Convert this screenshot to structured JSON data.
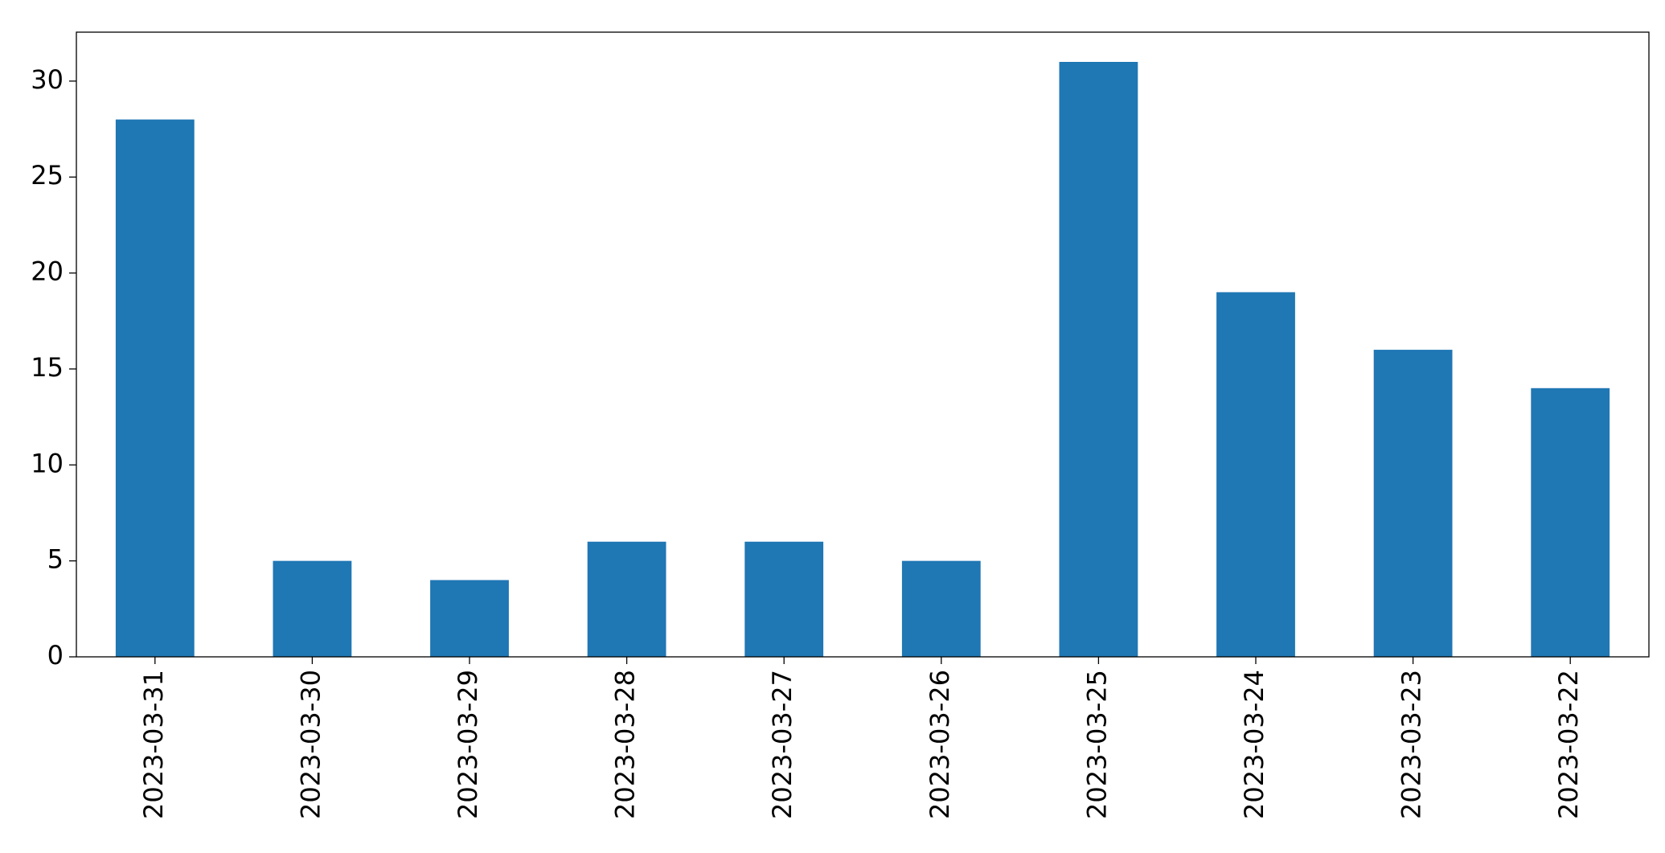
{
  "chart_data": {
    "type": "bar",
    "categories": [
      "2023-03-31",
      "2023-03-30",
      "2023-03-29",
      "2023-03-28",
      "2023-03-27",
      "2023-03-26",
      "2023-03-25",
      "2023-03-24",
      "2023-03-23",
      "2023-03-22"
    ],
    "values": [
      28,
      5,
      4,
      6,
      6,
      5,
      31,
      19,
      16,
      14
    ],
    "color": "#1f77b4",
    "ylim": [
      0,
      32.55
    ],
    "yticks": [
      0,
      5,
      10,
      15,
      20,
      25,
      30
    ],
    "grid": false
  }
}
